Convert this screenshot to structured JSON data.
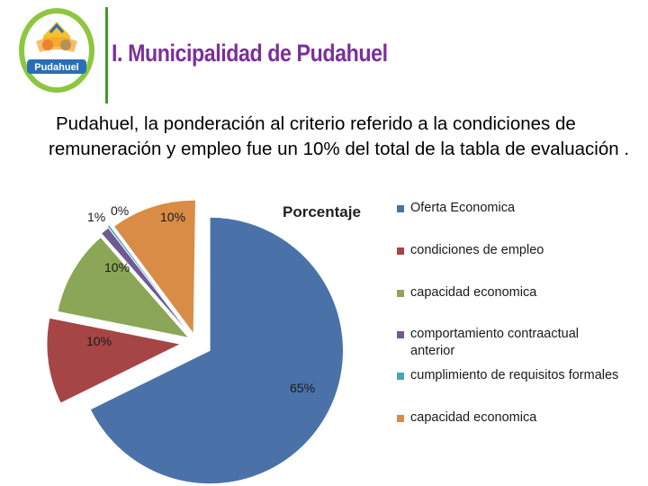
{
  "header": {
    "logo_text": "Pudahuel",
    "title": "I. Municipalidad de Pudahuel"
  },
  "body_text": "Pudahuel, la ponderación al criterio referido a la condiciones de remuneración y empleo fue un 10% del total de la tabla de evaluación .",
  "colors": {
    "oferta": "#4a72a8",
    "condiciones": "#a54545",
    "capacidad": "#8aa656",
    "comportamiento": "#6f5a92",
    "cumplimiento": "#4aa3b6",
    "capacidad2": "#d98c46",
    "brand_purple": "#7b2f9b",
    "brand_green": "#3f9a2f"
  },
  "chart_data": {
    "type": "pie",
    "title": "Porcentaje",
    "exploded": true,
    "legend_position": "right",
    "series": [
      {
        "name": "Oferta Economica",
        "value": 65,
        "label": "65%"
      },
      {
        "name": "condiciones de empleo",
        "value": 10,
        "label": "10%"
      },
      {
        "name": "capacidad economica",
        "value": 10,
        "label": "10%"
      },
      {
        "name": "comportamiento contraactual anterior",
        "value": 1,
        "label": "1%"
      },
      {
        "name": "cumplimiento de requisitos formales",
        "value": 0,
        "label": "0%"
      },
      {
        "name": "capacidad economica",
        "value": 10,
        "label": "10%"
      }
    ]
  }
}
